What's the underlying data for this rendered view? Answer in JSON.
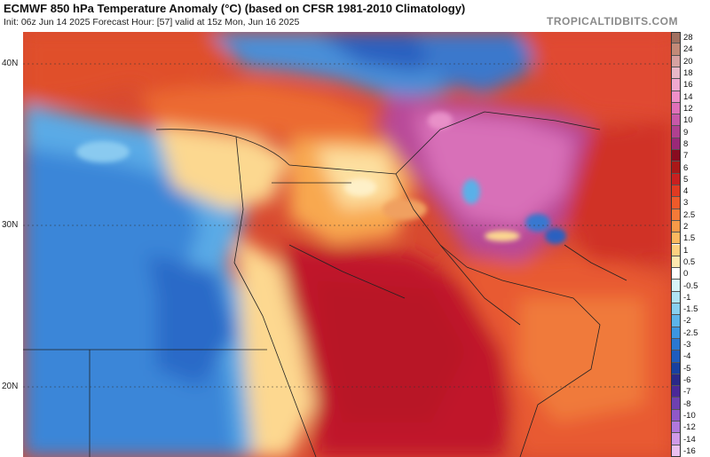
{
  "header": {
    "title": "ECMWF 850 hPa Temperature Anomaly (°C) (based on CFSR 1981-2010 Climatology)",
    "subtitle": "Init: 06z Jun 14 2025   Forecast Hour: [57]   valid at 15z Mon, Jun 16 2025",
    "watermark": "TROPICALTIDBITS.COM"
  },
  "map": {
    "latitude_labels": [
      {
        "label": "40N",
        "lat": 40
      },
      {
        "label": "30N",
        "lat": 30
      },
      {
        "label": "20N",
        "lat": 20
      }
    ]
  },
  "colorbar": {
    "levels": [
      {
        "label": "28",
        "color": "#a07060"
      },
      {
        "label": "24",
        "color": "#c28a78"
      },
      {
        "label": "20",
        "color": "#d6a2a2"
      },
      {
        "label": "18",
        "color": "#e8b8c8"
      },
      {
        "label": "16",
        "color": "#f0a8d0"
      },
      {
        "label": "14",
        "color": "#ee90c8"
      },
      {
        "label": "12",
        "color": "#e070b8"
      },
      {
        "label": "10",
        "color": "#c858a8"
      },
      {
        "label": "9",
        "color": "#b04090"
      },
      {
        "label": "8",
        "color": "#9a2878"
      },
      {
        "label": "7",
        "color": "#880c20"
      },
      {
        "label": "6",
        "color": "#a81818"
      },
      {
        "label": "5",
        "color": "#c82020"
      },
      {
        "label": "4",
        "color": "#e03a22"
      },
      {
        "label": "3",
        "color": "#ee5a2a"
      },
      {
        "label": "2.5",
        "color": "#f57a38"
      },
      {
        "label": "2",
        "color": "#f89a48"
      },
      {
        "label": "1.5",
        "color": "#fbb860"
      },
      {
        "label": "1",
        "color": "#fdd080"
      },
      {
        "label": "0.5",
        "color": "#fee8b0"
      },
      {
        "label": "0",
        "color": "#ffffff"
      },
      {
        "label": "-0.5",
        "color": "#d8f4f8"
      },
      {
        "label": "-1",
        "color": "#b0e4f4"
      },
      {
        "label": "-1.5",
        "color": "#88d0f0"
      },
      {
        "label": "-2",
        "color": "#5cb4ea"
      },
      {
        "label": "-2.5",
        "color": "#3c96e0"
      },
      {
        "label": "-3",
        "color": "#2a78d2"
      },
      {
        "label": "-4",
        "color": "#1e5cbe"
      },
      {
        "label": "-5",
        "color": "#1840a0"
      },
      {
        "label": "-6",
        "color": "#2a2888"
      },
      {
        "label": "-7",
        "color": "#4a2898"
      },
      {
        "label": "-8",
        "color": "#6e40b0"
      },
      {
        "label": "-10",
        "color": "#9058c8"
      },
      {
        "label": "-12",
        "color": "#b078dc"
      },
      {
        "label": "-14",
        "color": "#d09ae8"
      },
      {
        "label": "-16",
        "color": "#eac0f0"
      }
    ]
  }
}
